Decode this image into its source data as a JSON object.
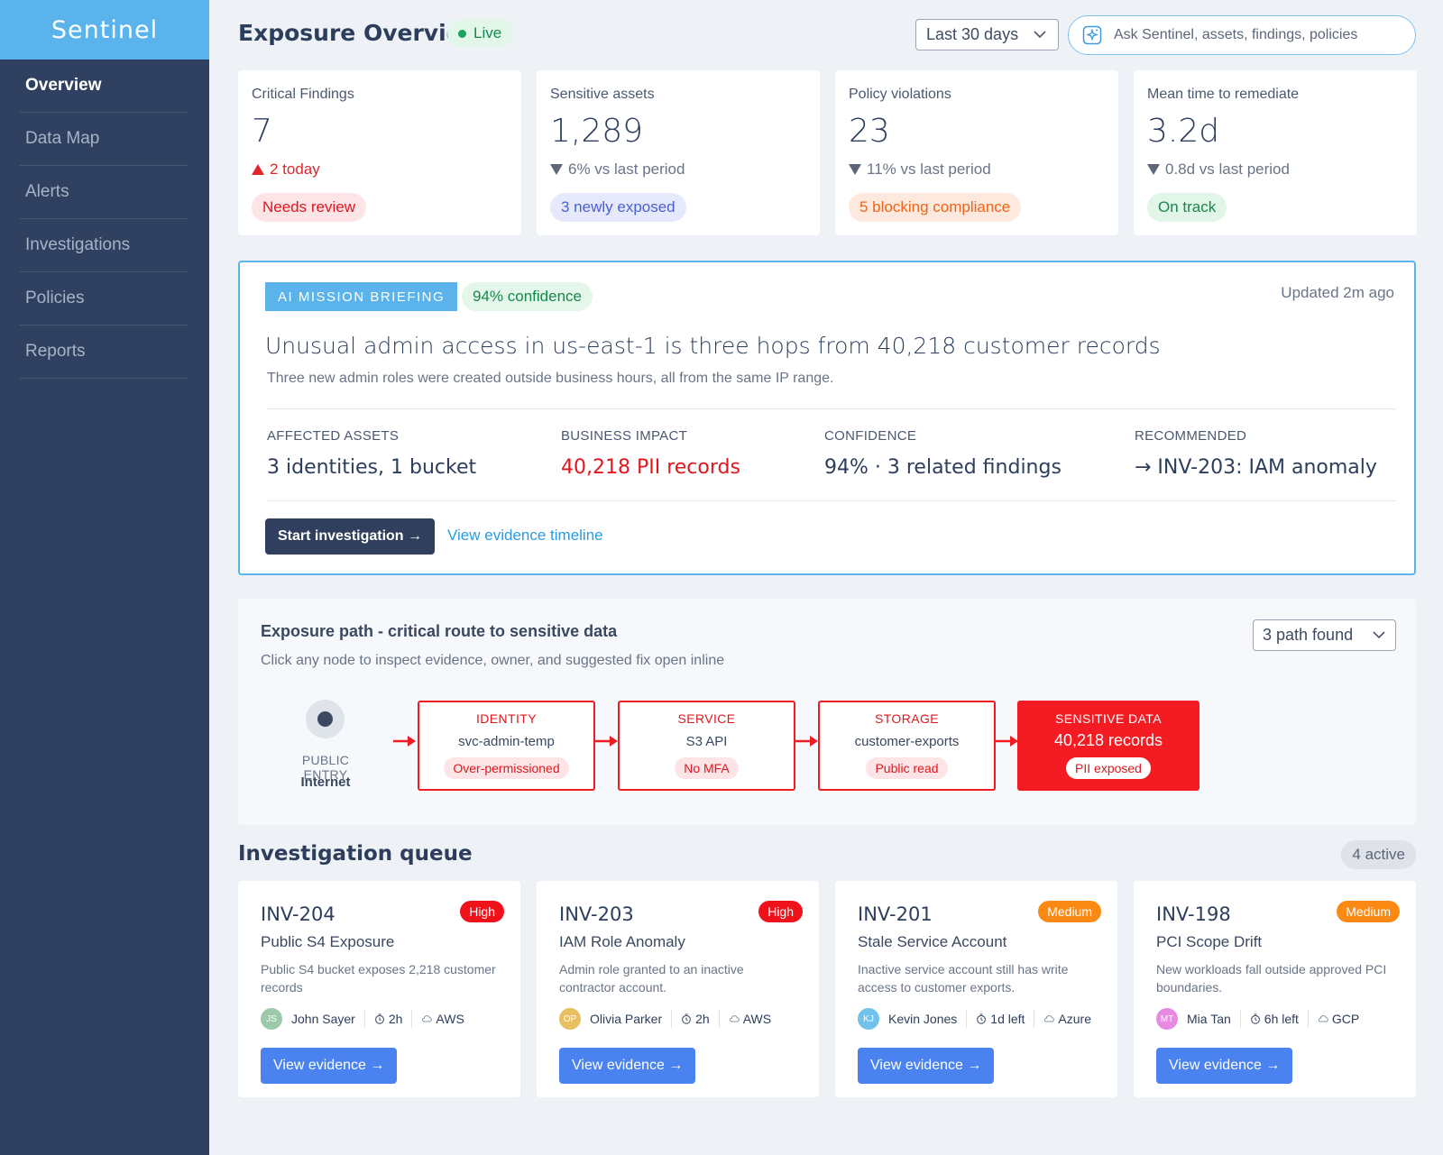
{
  "app": {
    "brand": "Sentinel"
  },
  "nav": [
    {
      "label": "Overview",
      "active": true
    },
    {
      "label": "Data Map",
      "active": false
    },
    {
      "label": "Alerts",
      "active": false
    },
    {
      "label": "Investigations",
      "active": false
    },
    {
      "label": "Policies",
      "active": false
    },
    {
      "label": "Reports",
      "active": false
    }
  ],
  "header": {
    "title": "Exposure Overview",
    "live_label": "Live",
    "range_value": "Last 30 days",
    "search_placeholder": "Ask Sentinel, assets, findings, policies"
  },
  "kpis": [
    {
      "label": "Critical Findings",
      "value": "7",
      "delta": "2 today",
      "direction": "up",
      "pill": "Needs review",
      "pill_tone": "red"
    },
    {
      "label": "Sensitive assets",
      "value": "1,289",
      "delta": "6% vs last period",
      "direction": "down",
      "pill": "3 newly exposed",
      "pill_tone": "blue"
    },
    {
      "label": "Policy violations",
      "value": "23",
      "delta": "11% vs last period",
      "direction": "down",
      "pill": "5 blocking compliance",
      "pill_tone": "orange"
    },
    {
      "label": "Mean time to remediate",
      "value": "3.2d",
      "delta": "0.8d vs last period",
      "direction": "down",
      "pill": "On track",
      "pill_tone": "green"
    }
  ],
  "briefing": {
    "tag": "AI MISSION BRIEFING",
    "confidence_pill": "94% confidence",
    "updated": "Updated 2m ago",
    "title": "Unusual admin access in us-east-1 is three hops from 40,218 customer records",
    "subtitle": "Three new admin roles were created outside business hours, all from the  same IP range.",
    "stats": [
      {
        "key": "AFFECTED ASSETS",
        "value": "3 identities, 1 bucket"
      },
      {
        "key": "BUSINESS IMPACT",
        "value": "40,218 PII records"
      },
      {
        "key": "CONFIDENCE",
        "value": "94% · 3 related findings"
      },
      {
        "key": "RECOMMENDED",
        "value": "→ INV-203: IAM anomaly"
      }
    ],
    "primary_button": "Start investigation →",
    "secondary_link": "View evidence timeline"
  },
  "exposure_path": {
    "title": "Exposure path - critical route to sensitive data",
    "subtitle": "Click any node to inspect evidence, owner, and suggested fix open inline",
    "paths_select": "3 path found",
    "entry": {
      "key": "PUBLIC ENTRY",
      "value": "Internet"
    },
    "nodes": [
      {
        "kind": "IDENTITY",
        "name": "svc-admin-temp",
        "tag": "Over-permissioned"
      },
      {
        "kind": "SERVICE",
        "name": "S3 API",
        "tag": "No MFA"
      },
      {
        "kind": "STORAGE",
        "name": "customer-exports",
        "tag": "Public read"
      },
      {
        "kind": "SENSITIVE DATA",
        "name": "40,218 records",
        "tag": "PII exposed"
      }
    ]
  },
  "queue": {
    "title": "Investigation queue",
    "active_label": "4 active",
    "cards": [
      {
        "id": "INV-204",
        "severity": "High",
        "name": "Public S4 Exposure",
        "desc": "Public S4 bucket exposes 2,218 customer records",
        "initials": "JS",
        "avatar_color": "#9cc9a8",
        "owner": "John Sayer",
        "time": "2h",
        "cloud": "AWS",
        "button": "View evidence →"
      },
      {
        "id": "INV-203",
        "severity": "High",
        "name": "IAM Role Anomaly",
        "desc": "Admin role granted to an inactive contractor account.",
        "initials": "OP",
        "avatar_color": "#e8c062",
        "owner": "Olivia Parker",
        "time": "2h",
        "cloud": "AWS",
        "button": "View evidence →"
      },
      {
        "id": "INV-201",
        "severity": "Medium",
        "name": "Stale Service Account",
        "desc": "Inactive service account still has write access to customer exports.",
        "initials": "KJ",
        "avatar_color": "#72c3ec",
        "owner": "Kevin Jones",
        "time": "1d left",
        "cloud": "Azure",
        "button": "View evidence →"
      },
      {
        "id": "INV-198",
        "severity": "Medium",
        "name": "PCI Scope Drift",
        "desc": "New workloads fall outside approved PCI boundaries.",
        "initials": "MT",
        "avatar_color": "#e98ae2",
        "owner": "Mia Tan",
        "time": "6h left",
        "cloud": "GCP",
        "button": "View evidence →"
      }
    ]
  },
  "colors": {
    "sidebar": "#2f4060",
    "brand_bar": "#5ab3ea",
    "critical_red": "#f41b22",
    "primary_blue": "#4a82ef",
    "link_blue": "#2a9be0",
    "success_green": "#15884b"
  },
  "icons": [
    "chevron-down-icon",
    "sparkle-search-icon",
    "triangle-up-icon",
    "triangle-down-icon",
    "arrow-right-icon",
    "timer-icon",
    "cloud-icon"
  ]
}
